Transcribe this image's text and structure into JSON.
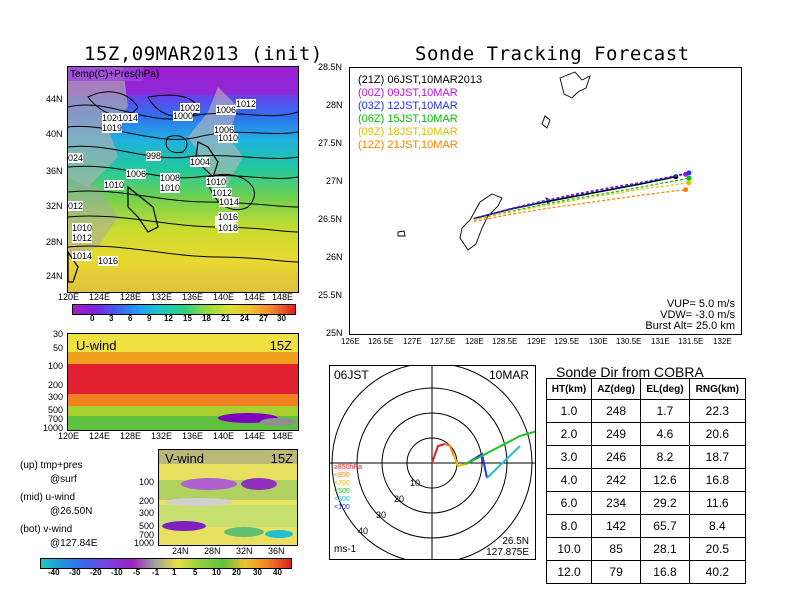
{
  "left_top": {
    "title": "15Z,09MAR2013 (init)",
    "inset_label": "Temp(C)+Pres(hPa)",
    "y_ticks": [
      "44N",
      "40N",
      "36N",
      "32N",
      "28N",
      "24N"
    ],
    "x_ticks": [
      "120E",
      "124E",
      "128E",
      "132E",
      "136E",
      "140E",
      "144E",
      "148E"
    ],
    "colorbar_ticks": [
      "0",
      "3",
      "6",
      "9",
      "12",
      "15",
      "18",
      "21",
      "24",
      "27",
      "30"
    ],
    "isobar_labels": [
      "1020",
      "1014",
      "1019",
      "1002",
      "1000",
      "1006",
      "1012",
      "1006",
      "1010",
      "998",
      "1004",
      "1006",
      "1008",
      "1010",
      "1010",
      "1010",
      "1012",
      "1014",
      "1016",
      "1018",
      "012",
      "1010",
      "1012",
      "1014",
      "1016",
      "024"
    ]
  },
  "uwind": {
    "label": "U-wind",
    "time": "15Z",
    "y_ticks": [
      "30",
      "50",
      "100",
      "200",
      "300",
      "500",
      "700",
      "1000"
    ],
    "x_ticks": [
      "120E",
      "124E",
      "128E",
      "132E",
      "136E",
      "140E",
      "144E",
      "148E"
    ]
  },
  "vwind": {
    "label": "V-wind",
    "time": "15Z",
    "y_ticks": [
      "100",
      "200",
      "300",
      "500",
      "700",
      "1000"
    ],
    "x_ticks": [
      "24N",
      "28N",
      "32N",
      "36N"
    ],
    "colorbar_ticks": [
      "-40",
      "-30",
      "-20",
      "-10",
      "-5",
      "-1",
      "1",
      "5",
      "10",
      "20",
      "30",
      "40"
    ]
  },
  "legend_text": {
    "up1": "(up) tmp+pres",
    "up2": "@surf",
    "mid1": "(mid) u-wind",
    "mid2": "@26.50N",
    "bot1": "(bot) v-wind",
    "bot2": "@127.84E"
  },
  "track": {
    "title": "Sonde Tracking Forecast",
    "y_ticks": [
      "28.5N",
      "28N",
      "27.5N",
      "27N",
      "26.5N",
      "26N",
      "25.5N",
      "25N"
    ],
    "x_ticks": [
      "126E",
      "126.5E",
      "127E",
      "127.5E",
      "128E",
      "128.5E",
      "129E",
      "129.5E",
      "130E",
      "130.5E",
      "131E",
      "131.5E",
      "132E"
    ],
    "info": [
      "VUP=  5.0 m/s",
      "VDW= -3.0 m/s",
      "Burst Alt= 25.0 km"
    ]
  },
  "polar": {
    "left_label": "06JST",
    "right_label": "10MAR",
    "unit": "ms-1",
    "location_lat": "26.5N",
    "location_lon": "127.875E",
    "ring_labels": [
      "10",
      "20",
      "30",
      "40"
    ],
    "level_legend": [
      "≥850hPa",
      "<850",
      "<700",
      "<500",
      "<300",
      "<100"
    ]
  },
  "dir_table": {
    "title": "Sonde Dir from COBRA",
    "headers": [
      "HT(km)",
      "AZ(deg)",
      "EL(deg)",
      "RNG(km)"
    ],
    "rows": [
      [
        "1.0",
        "248",
        "1.7",
        "22.3"
      ],
      [
        "2.0",
        "249",
        "4.6",
        "20.6"
      ],
      [
        "3.0",
        "246",
        "8.2",
        "18.7"
      ],
      [
        "4.0",
        "242",
        "12.6",
        "16.8"
      ],
      [
        "6.0",
        "234",
        "29.2",
        "11.6"
      ],
      [
        "8.0",
        "142",
        "65.7",
        "8.4"
      ],
      [
        "10.0",
        "85",
        "28.1",
        "20.5"
      ],
      [
        "12.0",
        "79",
        "16.8",
        "40.2"
      ]
    ]
  },
  "chart_data": [
    {
      "type": "line",
      "title": "Sonde Tracking Forecast",
      "xlim": [
        126,
        132
      ],
      "ylim": [
        25,
        28.5
      ],
      "series": [
        {
          "name": "(21Z)  06JST,10MAR2013",
          "color": "#000000",
          "x": [
            127.9,
            128.5,
            129.0,
            129.5,
            130.0,
            130.5,
            131.0
          ],
          "y": [
            26.52,
            26.65,
            26.74,
            26.82,
            26.9,
            26.98,
            27.07
          ]
        },
        {
          "name": "(00Z)  09JST,10MAR",
          "color": "#c010e0",
          "x": [
            127.9,
            128.5,
            129.0,
            129.5,
            130.0,
            130.5,
            131.15
          ],
          "y": [
            26.52,
            26.66,
            26.76,
            26.85,
            26.93,
            27.0,
            27.1
          ]
        },
        {
          "name": "(03Z)  12JST,10MAR",
          "color": "#2030ff",
          "x": [
            127.9,
            128.5,
            129.0,
            129.5,
            130.0,
            130.5,
            131.2
          ],
          "y": [
            26.52,
            26.65,
            26.75,
            26.84,
            26.92,
            27.0,
            27.12
          ]
        },
        {
          "name": "(06Z)  15JST,10MAR",
          "color": "#00c000",
          "x": [
            127.9,
            128.5,
            129.0,
            129.5,
            130.0,
            130.5,
            131.2
          ],
          "y": [
            26.5,
            26.62,
            26.71,
            26.79,
            26.86,
            26.94,
            27.05
          ]
        },
        {
          "name": "(09Z)  18JST,10MAR",
          "color": "#e0c000",
          "x": [
            127.9,
            128.5,
            129.0,
            129.5,
            130.0,
            130.5,
            131.2
          ],
          "y": [
            26.5,
            26.61,
            26.69,
            26.77,
            26.84,
            26.91,
            26.99
          ]
        },
        {
          "name": "(12Z)  21JST,10MAR",
          "color": "#ff8000",
          "x": [
            127.9,
            128.5,
            129.0,
            129.5,
            130.0,
            130.5,
            131.15
          ],
          "y": [
            26.48,
            26.58,
            26.65,
            26.71,
            26.77,
            26.83,
            26.9
          ]
        }
      ]
    }
  ]
}
